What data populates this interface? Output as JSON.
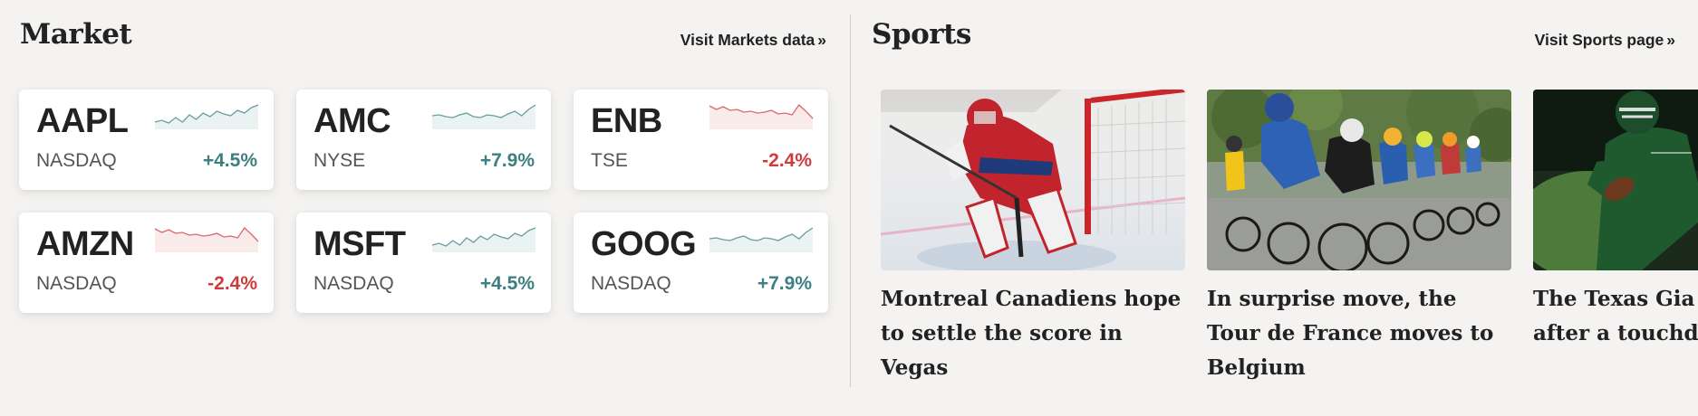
{
  "market": {
    "title": "Market",
    "link_label": "Visit Markets data",
    "link_suffix": "»",
    "tickers": [
      {
        "symbol": "AAPL",
        "exchange": "NASDAQ",
        "change": "+4.5%",
        "direction": "up"
      },
      {
        "symbol": "AMC",
        "exchange": "NYSE",
        "change": "+7.9%",
        "direction": "up"
      },
      {
        "symbol": "ENB",
        "exchange": "TSE",
        "change": "-2.4%",
        "direction": "down"
      },
      {
        "symbol": "AMZN",
        "exchange": "NASDAQ",
        "change": "-2.4%",
        "direction": "down"
      },
      {
        "symbol": "MSFT",
        "exchange": "NASDAQ",
        "change": "+4.5%",
        "direction": "up"
      },
      {
        "symbol": "GOOG",
        "exchange": "NASDAQ",
        "change": "+7.9%",
        "direction": "up"
      }
    ],
    "colors": {
      "up": "#3b7f80",
      "down": "#cf3a3d"
    }
  },
  "sports": {
    "title": "Sports",
    "link_label": "Visit Sports page",
    "link_suffix": "»",
    "stories": [
      {
        "headline": "Montreal Canadiens hope to settle the score in Vegas",
        "image": "hockey-goalie-image"
      },
      {
        "headline": "In surprise move, the Tour de France moves to Belgium",
        "image": "cycling-peloton-image"
      },
      {
        "headline": "The Texas Gia victory after a touchdown",
        "image": "football-player-image"
      }
    ]
  }
}
